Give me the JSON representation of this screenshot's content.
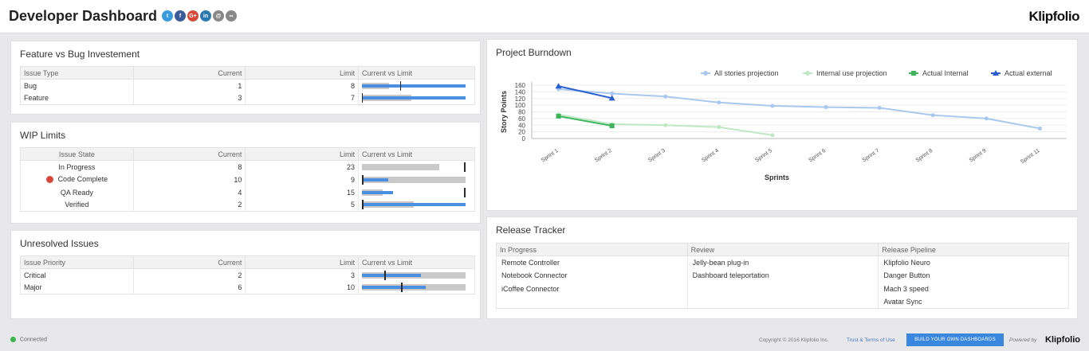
{
  "header": {
    "title": "Developer Dashboard",
    "brand": "Klipfolio",
    "social": [
      {
        "name": "twitter-icon",
        "glyph": "t",
        "color": "#3a9be0"
      },
      {
        "name": "facebook-icon",
        "glyph": "f",
        "color": "#3b5a9a"
      },
      {
        "name": "google-plus-icon",
        "glyph": "G+",
        "color": "#d84a38"
      },
      {
        "name": "linkedin-icon",
        "glyph": "in",
        "color": "#2a78b0"
      },
      {
        "name": "email-icon",
        "glyph": "@",
        "color": "#888888"
      },
      {
        "name": "link-icon",
        "glyph": "∞",
        "color": "#888888"
      }
    ]
  },
  "feature_bug": {
    "title": "Feature vs Bug Investement",
    "columns": [
      "Issue Type",
      "Current",
      "Limit",
      "Current vs Limit"
    ],
    "rows": [
      {
        "label": "Bug",
        "current": "1",
        "limit": "8"
      },
      {
        "label": "Feature",
        "current": "3",
        "limit": "7"
      }
    ]
  },
  "wip": {
    "title": "WIP Limits",
    "columns": [
      "Issue State",
      "Current",
      "Limit",
      "Current vs Limit"
    ],
    "rows": [
      {
        "label": "In Progress",
        "current": "8",
        "limit": "23",
        "alert": false
      },
      {
        "label": "Code Complete",
        "current": "10",
        "limit": "9",
        "alert": true
      },
      {
        "label": "QA Ready",
        "current": "4",
        "limit": "15",
        "alert": false
      },
      {
        "label": "Verified",
        "current": "2",
        "limit": "5",
        "alert": false
      }
    ]
  },
  "unresolved": {
    "title": "Unresolved Issues",
    "columns": [
      "Issue Priority",
      "Current",
      "Limit",
      "Current vs Limit"
    ],
    "rows": [
      {
        "label": "Critical",
        "current": "2",
        "limit": "3"
      },
      {
        "label": "Major",
        "current": "6",
        "limit": "10"
      }
    ]
  },
  "burndown": {
    "title": "Project Burndown",
    "legend": [
      "All stories projection",
      "Internal use projection",
      "Actual Internal",
      "Actual external"
    ]
  },
  "chart_data": {
    "type": "line",
    "xlabel": "Sprints",
    "ylabel": "Story Points",
    "ylim": [
      0,
      160
    ],
    "yticks": [
      0,
      20,
      40,
      60,
      80,
      100,
      120,
      140,
      160
    ],
    "categories": [
      "Sprint 1",
      "Sprint 2",
      "Sprint 3",
      "Sprint 4",
      "Sprint 5",
      "Sprint 6",
      "Sprint 7",
      "Sprint 8",
      "Sprint 9",
      "Sprint 11"
    ],
    "legend_position": "top",
    "grid": true,
    "series": [
      {
        "name": "All stories projection",
        "color": "#a8c8ee",
        "marker": "circle",
        "values": [
          148,
          135,
          126,
          108,
          98,
          94,
          92,
          70,
          60,
          30
        ]
      },
      {
        "name": "Internal use projection",
        "color": "#bfe8c4",
        "marker": "circle",
        "values": [
          72,
          43,
          40,
          34,
          10,
          null,
          null,
          null,
          null,
          null
        ]
      },
      {
        "name": "Actual Internal",
        "color": "#3db55a",
        "marker": "square",
        "values": [
          67,
          38,
          null,
          null,
          null,
          null,
          null,
          null,
          null,
          null
        ]
      },
      {
        "name": "Actual external",
        "color": "#2a5fcf",
        "marker": "triangle",
        "values": [
          157,
          121,
          null,
          null,
          null,
          null,
          null,
          null,
          null,
          null
        ]
      }
    ]
  },
  "release": {
    "title": "Release Tracker",
    "columns": [
      "In Progress",
      "Review",
      "Release Pipeline"
    ],
    "rows": [
      [
        "Remote Controller",
        "Jelly-bean plug-in",
        "Klipfolio Neuro"
      ],
      [
        "Notebook Connector",
        "Dashboard teleportation",
        "Danger Button"
      ],
      [
        "iCoffee Connector",
        "",
        "Mach 3 speed"
      ],
      [
        "",
        "",
        "Avatar Sync"
      ]
    ]
  },
  "footer": {
    "status": "Connected",
    "copyright": "Copyright © 2016 Klipfolio Inc.",
    "terms": "Trust & Terms of Use",
    "build_button": "BUILD YOUR OWN DASHBOARDS",
    "powered_by": "Powered by",
    "logo": "Klipfolio"
  }
}
